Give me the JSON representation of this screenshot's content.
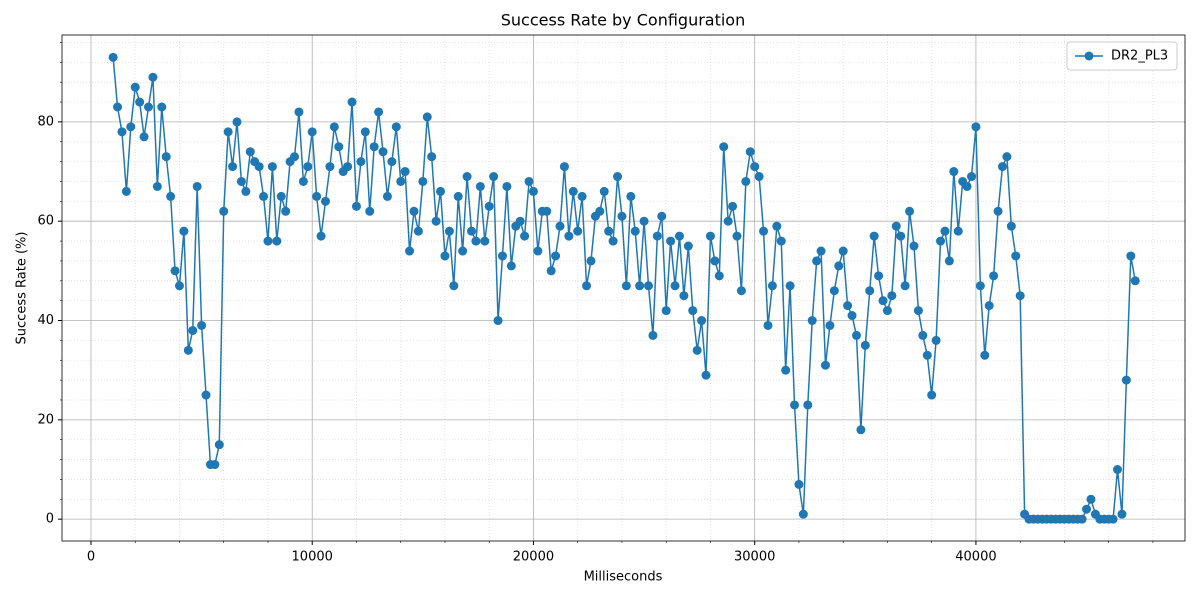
{
  "chart_data": {
    "type": "line",
    "title": "Success Rate by Configuration",
    "xlabel": "Milliseconds",
    "ylabel": "Success Rate (%)",
    "xlim": [
      -1310,
      49450
    ],
    "ylim": [
      -4.4,
      97.5
    ],
    "xticks": [
      0,
      10000,
      20000,
      30000,
      40000
    ],
    "yticks": [
      0,
      20,
      40,
      60,
      80
    ],
    "xminorticks": [
      2000,
      4000,
      6000,
      8000,
      12000,
      14000,
      16000,
      18000,
      22000,
      24000,
      26000,
      28000,
      32000,
      34000,
      36000,
      38000,
      42000,
      44000,
      46000,
      48000
    ],
    "yminorticks": [
      4,
      8,
      12,
      16,
      24,
      28,
      32,
      36,
      44,
      48,
      52,
      56,
      64,
      68,
      72,
      76,
      84,
      88,
      92,
      96
    ],
    "grid": true,
    "legend": "upper right",
    "x": [
      1000,
      1200,
      1400,
      1600,
      1800,
      2000,
      2200,
      2400,
      2600,
      2800,
      3000,
      3200,
      3400,
      3600,
      3800,
      4000,
      4200,
      4400,
      4600,
      4800,
      5000,
      5200,
      5400,
      5600,
      5800,
      6000,
      6200,
      6400,
      6600,
      6800,
      7000,
      7200,
      7400,
      7600,
      7800,
      8000,
      8200,
      8400,
      8600,
      8800,
      9000,
      9200,
      9400,
      9600,
      9800,
      10000,
      10200,
      10400,
      10600,
      10800,
      11000,
      11200,
      11400,
      11600,
      11800,
      12000,
      12200,
      12400,
      12600,
      12800,
      13000,
      13200,
      13400,
      13600,
      13800,
      14000,
      14200,
      14400,
      14600,
      14800,
      15000,
      15200,
      15400,
      15600,
      15800,
      16000,
      16200,
      16400,
      16600,
      16800,
      17000,
      17200,
      17400,
      17600,
      17800,
      18000,
      18200,
      18400,
      18600,
      18800,
      19000,
      19200,
      19400,
      19600,
      19800,
      20000,
      20200,
      20400,
      20600,
      20800,
      21000,
      21200,
      21400,
      21600,
      21800,
      22000,
      22200,
      22400,
      22600,
      22800,
      23000,
      23200,
      23400,
      23600,
      23800,
      24000,
      24200,
      24400,
      24600,
      24800,
      25000,
      25200,
      25400,
      25600,
      25800,
      26000,
      26200,
      26400,
      26600,
      26800,
      27000,
      27200,
      27400,
      27600,
      27800,
      28000,
      28200,
      28400,
      28600,
      28800,
      29000,
      29200,
      29400,
      29600,
      29800,
      30000,
      30200,
      30400,
      30600,
      30800,
      31000,
      31200,
      31400,
      31600,
      31800,
      32000,
      32200,
      32400,
      32600,
      32800,
      33000,
      33200,
      33400,
      33600,
      33800,
      34000,
      34200,
      34400,
      34600,
      34800,
      35000,
      35200,
      35400,
      35600,
      35800,
      36000,
      36200,
      36400,
      36600,
      36800,
      37000,
      37200,
      37400,
      37600,
      37800,
      38000,
      38200,
      38400,
      38600,
      38800,
      39000,
      39200,
      39400,
      39600,
      39800,
      40000,
      40200,
      40400,
      40600,
      40800,
      41000,
      41200,
      41400,
      41600,
      41800,
      42000,
      42200,
      42400,
      42600,
      42800,
      43000,
      43200,
      43400,
      43600,
      43800,
      44000,
      44200,
      44400,
      44600,
      44800,
      45000,
      45200,
      45400,
      45600,
      45800,
      46000,
      46200,
      46400,
      46600,
      46800,
      47000,
      47200
    ],
    "series": [
      {
        "name": "DR2_PL3",
        "color": "#1f77b4",
        "values": [
          93,
          83,
          78,
          66,
          79,
          87,
          84,
          77,
          83,
          89,
          67,
          83,
          73,
          65,
          50,
          47,
          58,
          34,
          38,
          67,
          39,
          25,
          11,
          11,
          15,
          62,
          78,
          71,
          80,
          68,
          66,
          74,
          72,
          71,
          65,
          56,
          71,
          56,
          65,
          62,
          72,
          73,
          82,
          68,
          71,
          78,
          65,
          57,
          64,
          71,
          79,
          75,
          70,
          71,
          84,
          63,
          72,
          78,
          62,
          75,
          82,
          74,
          65,
          72,
          79,
          68,
          70,
          54,
          62,
          58,
          68,
          81,
          73,
          60,
          66,
          53,
          58,
          47,
          65,
          54,
          69,
          58,
          56,
          67,
          56,
          63,
          69,
          40,
          53,
          67,
          51,
          59,
          60,
          57,
          68,
          66,
          54,
          62,
          62,
          50,
          53,
          59,
          71,
          57,
          66,
          58,
          65,
          47,
          52,
          61,
          62,
          66,
          58,
          56,
          69,
          61,
          47,
          65,
          58,
          47,
          60,
          47,
          37,
          57,
          61,
          42,
          56,
          47,
          57,
          45,
          55,
          42,
          34,
          40,
          29,
          57,
          52,
          49,
          75,
          60,
          63,
          57,
          46,
          68,
          74,
          71,
          69,
          58,
          39,
          47,
          59,
          56,
          30,
          47,
          23,
          7,
          1,
          23,
          40,
          52,
          54,
          31,
          39,
          46,
          51,
          54,
          43,
          41,
          37,
          18,
          35,
          46,
          57,
          49,
          44,
          42,
          45,
          59,
          57,
          47,
          62,
          55,
          42,
          37,
          33,
          25,
          36,
          56,
          58,
          52,
          70,
          58,
          68,
          67,
          69,
          79,
          47,
          33,
          43,
          49,
          62,
          71,
          73,
          59,
          53,
          45,
          1,
          0,
          0,
          0,
          0,
          0,
          0,
          0,
          0,
          0,
          0,
          0,
          0,
          0,
          2,
          4,
          1,
          0,
          0,
          0,
          0,
          10,
          1,
          28,
          53,
          48
        ]
      }
    ]
  }
}
